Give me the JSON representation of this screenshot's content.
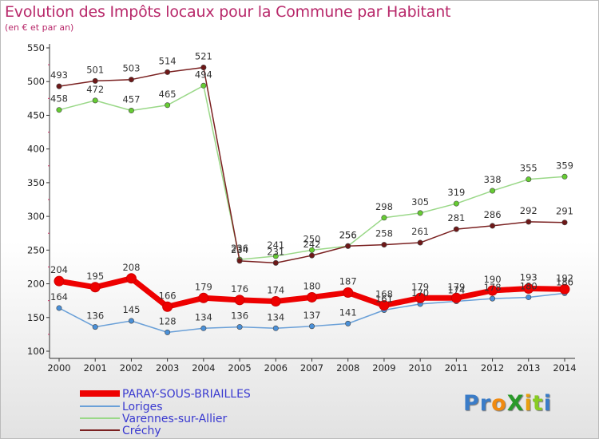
{
  "title": "Evolution des Impôts locaux pour la Commune par Habitant",
  "subtitle": "(en € et par an)",
  "brand": "ProXiti",
  "chart_data": {
    "type": "line",
    "title": "Evolution des Impôts locaux pour la Commune par Habitant",
    "subtitle": "(en € et par an)",
    "ylim": [
      100,
      550
    ],
    "yticks": [
      100,
      150,
      200,
      250,
      300,
      350,
      400,
      450,
      500,
      550
    ],
    "categories": [
      "2000",
      "2001",
      "2002",
      "2003",
      "2004",
      "2005",
      "2006",
      "2007",
      "2008",
      "2009",
      "2010",
      "2011",
      "2012",
      "2013",
      "2014"
    ],
    "grid": false,
    "legend": "bottom-left",
    "series": [
      {
        "name": "PARAY-SOUS-BRIAILLES",
        "color": "#ee0000",
        "marker": "#ee0000",
        "values": [
          204,
          195,
          208,
          166,
          179,
          176,
          174,
          180,
          187,
          168,
          179,
          179,
          190,
          193,
          192
        ]
      },
      {
        "name": "Loriges",
        "color": "#6aa0d8",
        "marker": "#4a90d8",
        "values": [
          164,
          136,
          145,
          128,
          134,
          136,
          134,
          137,
          141,
          161,
          170,
          174,
          178,
          180,
          186
        ]
      },
      {
        "name": "Varennes-sur-Allier",
        "color": "#9ad888",
        "marker": "#66cc33",
        "values": [
          458,
          472,
          457,
          465,
          494,
          236,
          241,
          250,
          256,
          298,
          305,
          319,
          338,
          355,
          359
        ]
      },
      {
        "name": "Créchy",
        "color": "#7a2020",
        "marker": "#6e1818",
        "values": [
          493,
          501,
          503,
          514,
          521,
          234,
          231,
          242,
          256,
          258,
          261,
          281,
          286,
          292,
          291
        ]
      }
    ]
  }
}
